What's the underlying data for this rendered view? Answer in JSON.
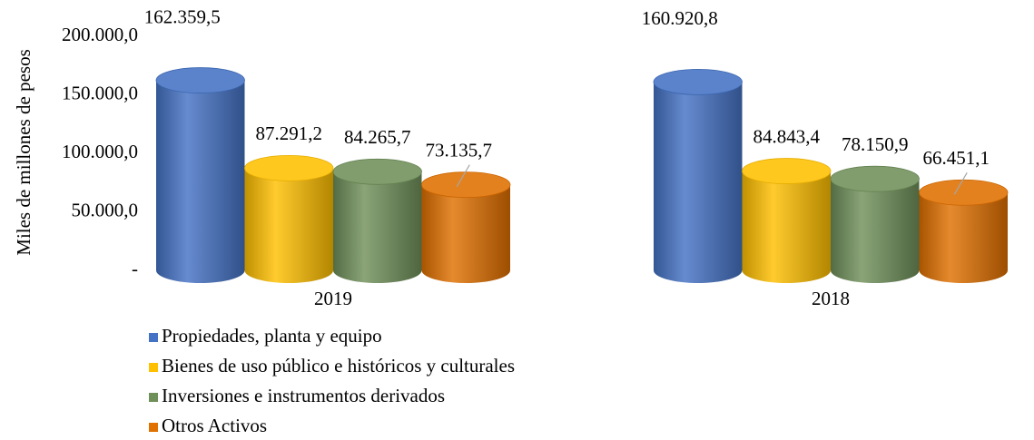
{
  "chart_data": {
    "type": "bar",
    "y_label": "Miles de millones de pesos",
    "categories": [
      "2019",
      "2018"
    ],
    "series": [
      {
        "name": "Propiedades, planta y equipo",
        "color": "#4472c4",
        "values": [
          162359.5,
          160920.8
        ],
        "value_labels": [
          "162.359,5",
          "160.920,8"
        ]
      },
      {
        "name": "Bienes de uso público e históricos y culturales",
        "color": "#ffc000",
        "values": [
          87291.2,
          84843.4
        ],
        "value_labels": [
          "87.291,2",
          "84.843,4"
        ]
      },
      {
        "name": "Inversiones e instrumentos derivados",
        "color": "#70905a",
        "values": [
          84265.7,
          78150.9
        ],
        "value_labels": [
          "84.265,7",
          "78.150,9"
        ]
      },
      {
        "name": "Otros Activos",
        "color": "#e07000",
        "values": [
          73135.7,
          66451.1
        ],
        "value_labels": [
          "73.135,7",
          "66.451,1"
        ]
      }
    ],
    "ylim": [
      0,
      200000
    ],
    "yticks": [
      {
        "value": 0,
        "label": "-"
      },
      {
        "value": 50000,
        "label": "50.000,0"
      },
      {
        "value": 100000,
        "label": "100.000,0"
      },
      {
        "value": 150000,
        "label": "150.000,0"
      },
      {
        "value": 200000,
        "label": "200.000,0"
      }
    ],
    "legend": "bottom-left"
  }
}
